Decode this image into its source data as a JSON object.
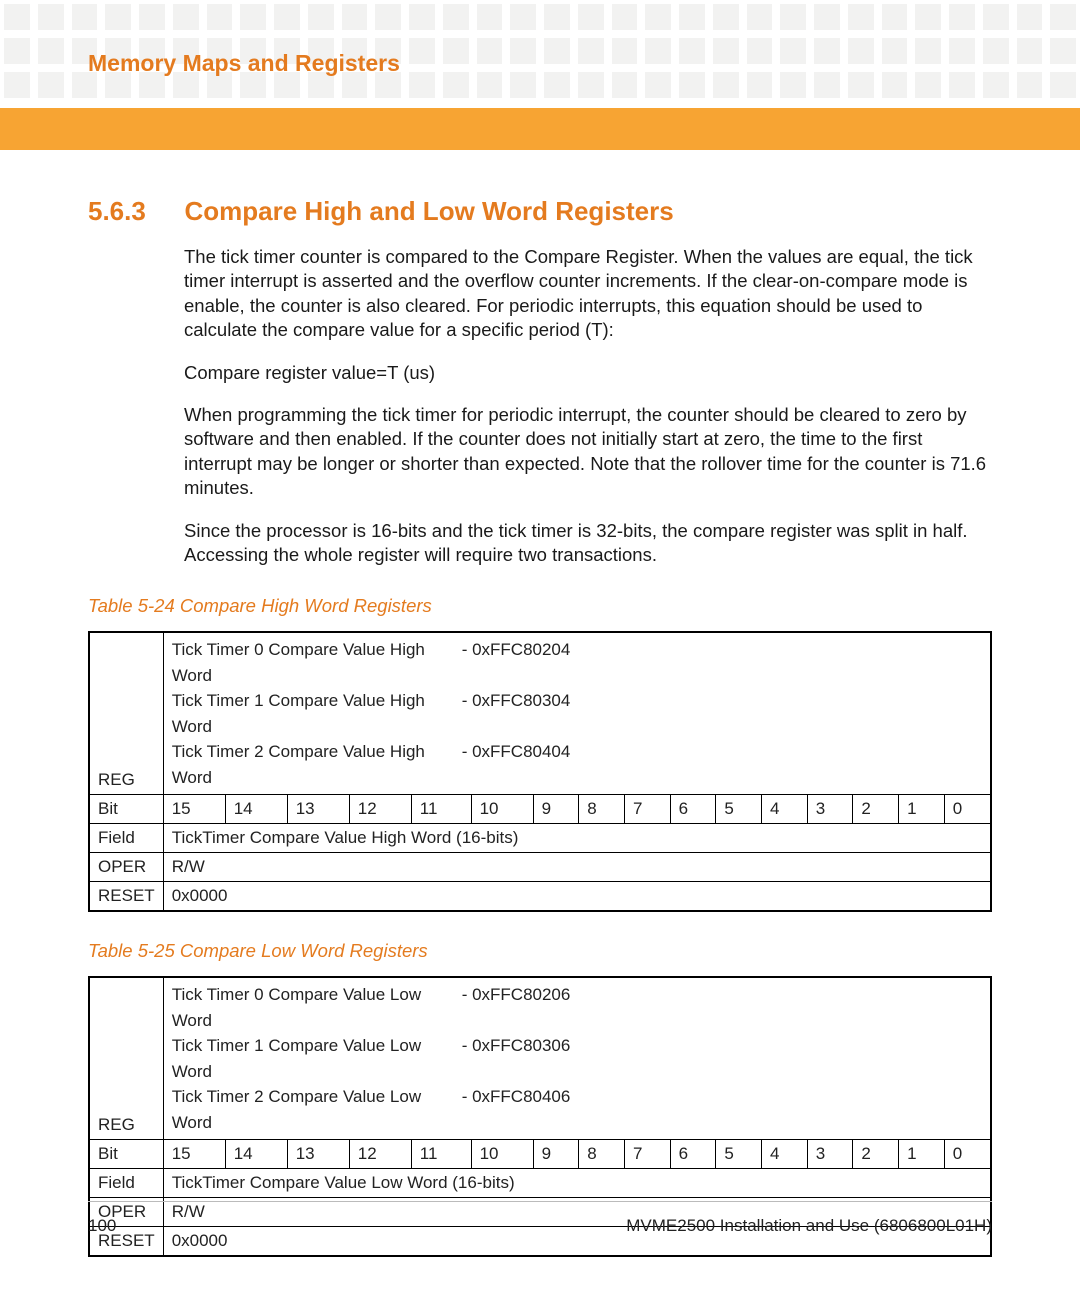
{
  "header": {
    "chapter_title": "Memory Maps and Registers"
  },
  "section": {
    "number": "5.6.3",
    "title": "Compare High and Low Word Registers"
  },
  "paragraphs": {
    "p1": "The tick timer counter is compared to the Compare Register. When the values are equal, the tick timer interrupt is asserted and the overflow counter increments. If the clear-on-compare mode is enable, the counter is also cleared. For periodic interrupts, this equation should be used to calculate the compare value for a specific period (T):",
    "p2": "Compare register value=T (us)",
    "p3": "When programming the tick timer for periodic interrupt, the counter should be cleared to zero by software and then enabled. If the counter does not initially start at zero, the time to the first interrupt may be longer or shorter than expected. Note that the rollover time for the counter is 71.6 minutes.",
    "p4": "Since the processor is 16-bits and the tick timer is 32-bits, the compare register was split in half. Accessing the whole register will require two transactions."
  },
  "table_high": {
    "caption": "Table 5-24 Compare High Word Registers",
    "reg_label": "REG",
    "regs": [
      {
        "name": "Tick Timer 0 Compare Value High Word",
        "addr": "- 0xFFC80204"
      },
      {
        "name": "Tick Timer 1 Compare Value High Word",
        "addr": "- 0xFFC80304"
      },
      {
        "name": "Tick Timer 2 Compare Value High Word",
        "addr": "- 0xFFC80404"
      }
    ],
    "bit_label": "Bit",
    "bits": [
      "15",
      "14",
      "13",
      "12",
      "11",
      "10",
      "9",
      "8",
      "7",
      "6",
      "5",
      "4",
      "3",
      "2",
      "1",
      "0"
    ],
    "field_label": "Field",
    "field_value": "TickTimer Compare Value High Word (16-bits)",
    "oper_label": "OPER",
    "oper_value": "R/W",
    "reset_label": "RESET",
    "reset_value": "0x0000"
  },
  "table_low": {
    "caption": "Table 5-25 Compare Low Word Registers",
    "reg_label": "REG",
    "regs": [
      {
        "name": "Tick Timer 0 Compare Value Low Word",
        "addr": "- 0xFFC80206"
      },
      {
        "name": "Tick Timer 1 Compare Value Low Word",
        "addr": "- 0xFFC80306"
      },
      {
        "name": "Tick Timer 2 Compare Value Low Word",
        "addr": "- 0xFFC80406"
      }
    ],
    "bit_label": "Bit",
    "bits": [
      "15",
      "14",
      "13",
      "12",
      "11",
      "10",
      "9",
      "8",
      "7",
      "6",
      "5",
      "4",
      "3",
      "2",
      "1",
      "0"
    ],
    "field_label": "Field",
    "field_value": "TickTimer Compare Value Low Word (16-bits)",
    "oper_label": "OPER",
    "oper_value": "R/W",
    "reset_label": "RESET",
    "reset_value": "0x0000"
  },
  "footer": {
    "page_number": "100",
    "doc_title": "MVME2500 Installation and Use (6806800L01H)"
  },
  "colors": {
    "accent": "#e47b1f",
    "bar": "#f7a433",
    "square": "#f2f2f1"
  }
}
